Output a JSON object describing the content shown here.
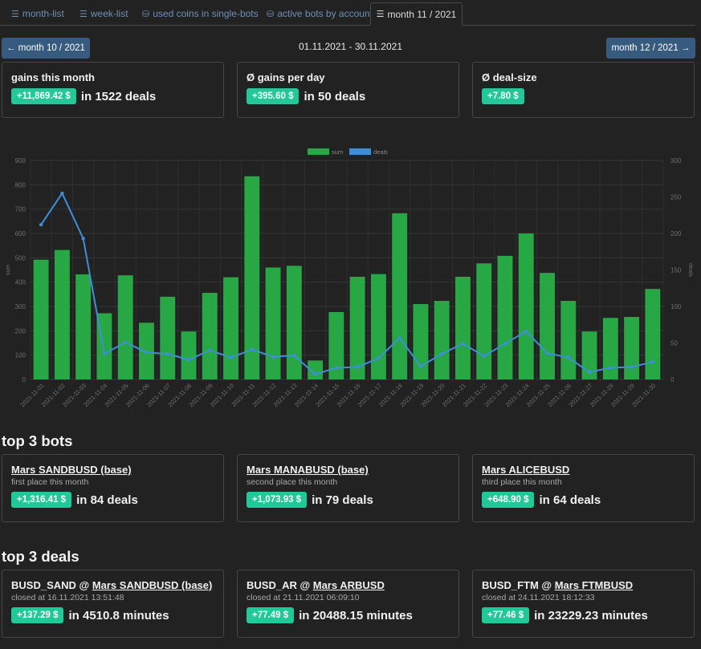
{
  "tabs": [
    {
      "label": "month-list",
      "icon": "list-icon"
    },
    {
      "label": "week-list",
      "icon": "list-icon"
    },
    {
      "label": "used coins in single-bots",
      "icon": "coins-icon"
    },
    {
      "label": "active bots by account",
      "icon": "coins-icon"
    },
    {
      "label": "month 11 / 2021",
      "icon": "list-icon"
    }
  ],
  "nav": {
    "prev_label": "← month 10 / 2021",
    "next_label": "month 12 / 2021 →",
    "date_range": "01.11.2021 - 30.11.2021"
  },
  "summary": {
    "gains": {
      "title": "gains this month",
      "badge": "+11,869.42 $",
      "text": "in 1522 deals"
    },
    "per_day": {
      "title": "Ø gains per day",
      "badge": "+395.60 $",
      "text": "in 50 deals"
    },
    "deal_size": {
      "title": "Ø deal-size",
      "badge": "+7.80 $"
    }
  },
  "chart_data": {
    "type": "bar",
    "legend": [
      "sum",
      "deals"
    ],
    "legend_position": "top-center",
    "colors": {
      "sum": "#28a745",
      "deals": "#3d8fdc"
    },
    "left_axis_label": "sum",
    "right_axis_label": "deals",
    "left_ticks": [
      "900",
      "800",
      "700",
      "600",
      "500",
      "400",
      "300",
      "200",
      "100",
      "0"
    ],
    "right_ticks": [
      "300",
      "250",
      "200",
      "150",
      "100",
      "50",
      "0"
    ],
    "ylim_left": [
      0,
      900
    ],
    "ylim_right": [
      0,
      300
    ],
    "grid": true,
    "categories": [
      "2021-11-01",
      "2021-11-02",
      "2021-11-03",
      "2021-11-04",
      "2021-11-05",
      "2021-11-06",
      "2021-11-07",
      "2021-11-08",
      "2021-11-09",
      "2021-11-10",
      "2021-11-11",
      "2021-11-12",
      "2021-11-13",
      "2021-11-14",
      "2021-11-15",
      "2021-11-16",
      "2021-11-17",
      "2021-11-18",
      "2021-11-19",
      "2021-11-20",
      "2021-11-21",
      "2021-11-22",
      "2021-11-23",
      "2021-11-24",
      "2021-11-25",
      "2021-11-26",
      "2021-11-27",
      "2021-11-28",
      "2021-11-29",
      "2021-11-30"
    ],
    "series": [
      {
        "name": "sum",
        "type": "bar",
        "axis": "left",
        "values": [
          492,
          532,
          432,
          272,
          428,
          233,
          340,
          197,
          356,
          420,
          835,
          460,
          467,
          78,
          277,
          422,
          433,
          683,
          310,
          323,
          422,
          477,
          508,
          600,
          438,
          323,
          197,
          253,
          257,
          372
        ]
      },
      {
        "name": "deals",
        "type": "line",
        "axis": "right",
        "values": [
          212,
          255,
          193,
          35,
          51,
          37,
          35,
          27,
          40,
          30,
          41,
          31,
          33,
          7,
          16,
          17,
          29,
          57,
          18,
          35,
          49,
          32,
          49,
          66,
          36,
          30,
          10,
          16,
          17,
          24
        ]
      }
    ]
  },
  "top_bots": {
    "title": "top 3 bots",
    "items": [
      {
        "name": "Mars SANDBUSD (base)",
        "place": "first place this month",
        "badge": "+1,316.41 $",
        "text": "in 84 deals"
      },
      {
        "name": "Mars MANABUSD (base)",
        "place": "second place this month",
        "badge": "+1,073.93 $",
        "text": "in 79 deals"
      },
      {
        "name": "Mars ALICEBUSD",
        "place": "third place this month",
        "badge": "+648.90 $",
        "text": "in 64 deals"
      }
    ]
  },
  "top_deals": {
    "title": "top 3 deals",
    "items": [
      {
        "pair": "BUSD_SAND @ ",
        "bot": "Mars SANDBUSD (base)",
        "closed": "closed at 16.11.2021 13:51:48",
        "badge": "+137.29 $",
        "text": "in 4510.8 minutes"
      },
      {
        "pair": "BUSD_AR @ ",
        "bot": "Mars ARBUSD",
        "closed": "closed at 21.11.2021 06:09:10",
        "badge": "+77.49 $",
        "text": "in 20488.15 minutes"
      },
      {
        "pair": "BUSD_FTM @ ",
        "bot": "Mars FTMBUSD",
        "closed": "closed at 24.11.2021 18:12:33",
        "badge": "+77.46 $",
        "text": "in 23229.23 minutes"
      }
    ]
  }
}
